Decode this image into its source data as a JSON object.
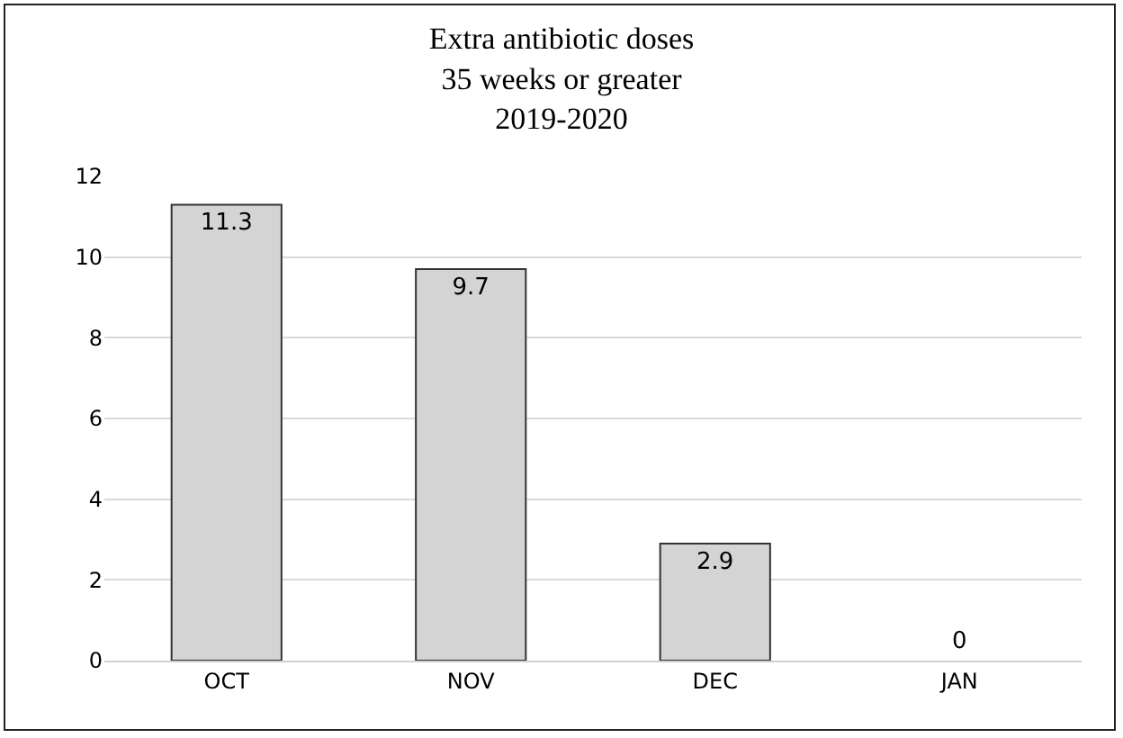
{
  "chart_data": {
    "type": "bar",
    "title": "Extra antibiotic doses\n35 weeks or greater\n2019-2020",
    "categories": [
      "OCT",
      "NOV",
      "DEC",
      "JAN"
    ],
    "values": [
      11.3,
      9.7,
      2.9,
      0
    ],
    "color": "#d4d4d4",
    "ylim": [
      0,
      12
    ],
    "yticks": [
      0,
      2,
      4,
      6,
      8,
      10,
      12
    ],
    "grid": "y",
    "data_labels": true,
    "legend": false
  }
}
